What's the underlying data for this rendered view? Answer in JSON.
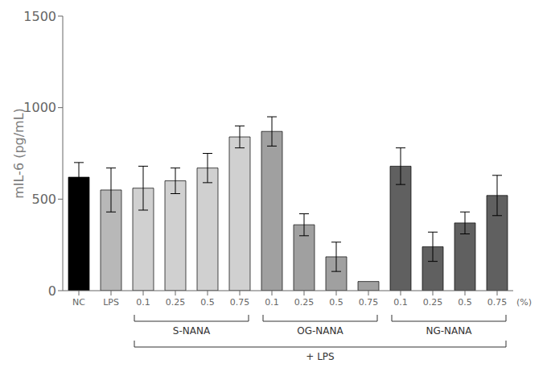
{
  "chart_data": {
    "type": "bar",
    "categories": [
      "NC",
      "LPS",
      "0.1",
      "0.25",
      "0.5",
      "0.75",
      "0.1",
      "0.25",
      "0.5",
      "0.75",
      "0.1",
      "0.25",
      "0.5",
      "0.75"
    ],
    "values": [
      620,
      550,
      560,
      600,
      670,
      840,
      870,
      360,
      185,
      50,
      680,
      240,
      370,
      520
    ],
    "errors": [
      80,
      120,
      120,
      70,
      80,
      60,
      80,
      60,
      80,
      0,
      100,
      80,
      60,
      110
    ],
    "colors": [
      "#000000",
      "#b8b8b8",
      "#d0d0d0",
      "#d0d0d0",
      "#d0d0d0",
      "#d0d0d0",
      "#a0a0a0",
      "#a0a0a0",
      "#a0a0a0",
      "#a0a0a0",
      "#606060",
      "#606060",
      "#606060",
      "#606060"
    ],
    "ylabel": "mIL-6 (pg/mL)",
    "ylim": [
      0,
      1500
    ],
    "yticks": [
      0,
      500,
      1000,
      1500
    ],
    "grid": false,
    "annotations": [
      "(%)"
    ],
    "groups": [
      {
        "label": "S-NANA",
        "start": 2,
        "end": 5
      },
      {
        "label": "OG-NANA",
        "start": 6,
        "end": 9
      },
      {
        "label": "NG-NANA",
        "start": 10,
        "end": 13
      }
    ],
    "outer_group": {
      "label": "+ LPS",
      "start": 2,
      "end": 13
    }
  }
}
